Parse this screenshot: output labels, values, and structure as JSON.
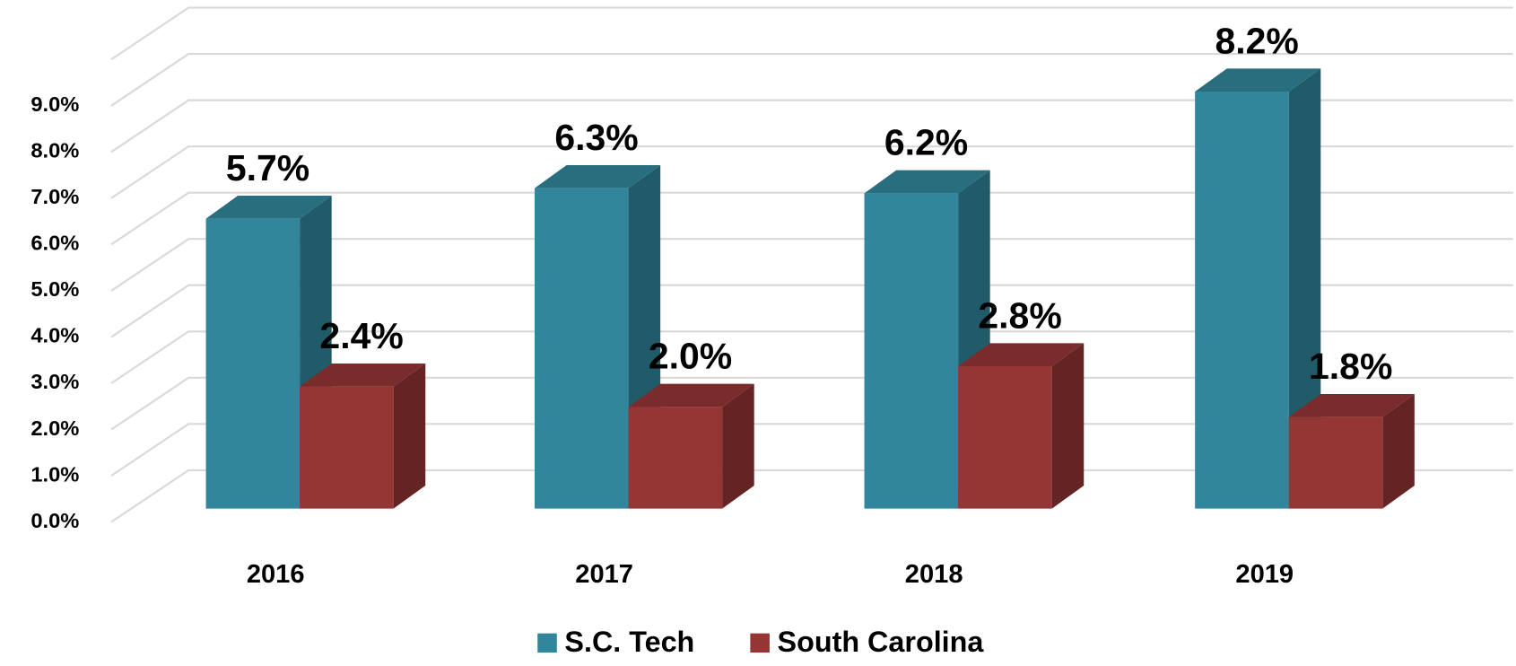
{
  "chart_data": {
    "type": "bar3d",
    "categories": [
      "2016",
      "2017",
      "2018",
      "2019"
    ],
    "series": [
      {
        "name": "S.C. Tech",
        "color": "#31869b",
        "values": [
          5.7,
          6.3,
          6.2,
          8.2
        ],
        "value_labels": [
          "5.7%",
          "6.3%",
          "6.2%",
          "8.2%"
        ]
      },
      {
        "name": "South Carolina",
        "color": "#943634",
        "values": [
          2.4,
          2.0,
          2.8,
          1.8
        ],
        "value_labels": [
          "2.4%",
          "2.0%",
          "2.8%",
          "1.8%"
        ]
      }
    ],
    "ylim": [
      0,
      10
    ],
    "yticks": [
      {
        "value": 0,
        "label": "0.0%"
      },
      {
        "value": 1,
        "label": "1.0%"
      },
      {
        "value": 2,
        "label": "2.0%"
      },
      {
        "value": 3,
        "label": "3.0%"
      },
      {
        "value": 4,
        "label": "4.0%"
      },
      {
        "value": 5,
        "label": "5.0%"
      },
      {
        "value": 6,
        "label": "6.0%"
      },
      {
        "value": 7,
        "label": "7.0%"
      },
      {
        "value": 8,
        "label": "8.0%"
      },
      {
        "value": 9,
        "label": "9.0%"
      }
    ],
    "grid": true,
    "legend": "bottom"
  }
}
